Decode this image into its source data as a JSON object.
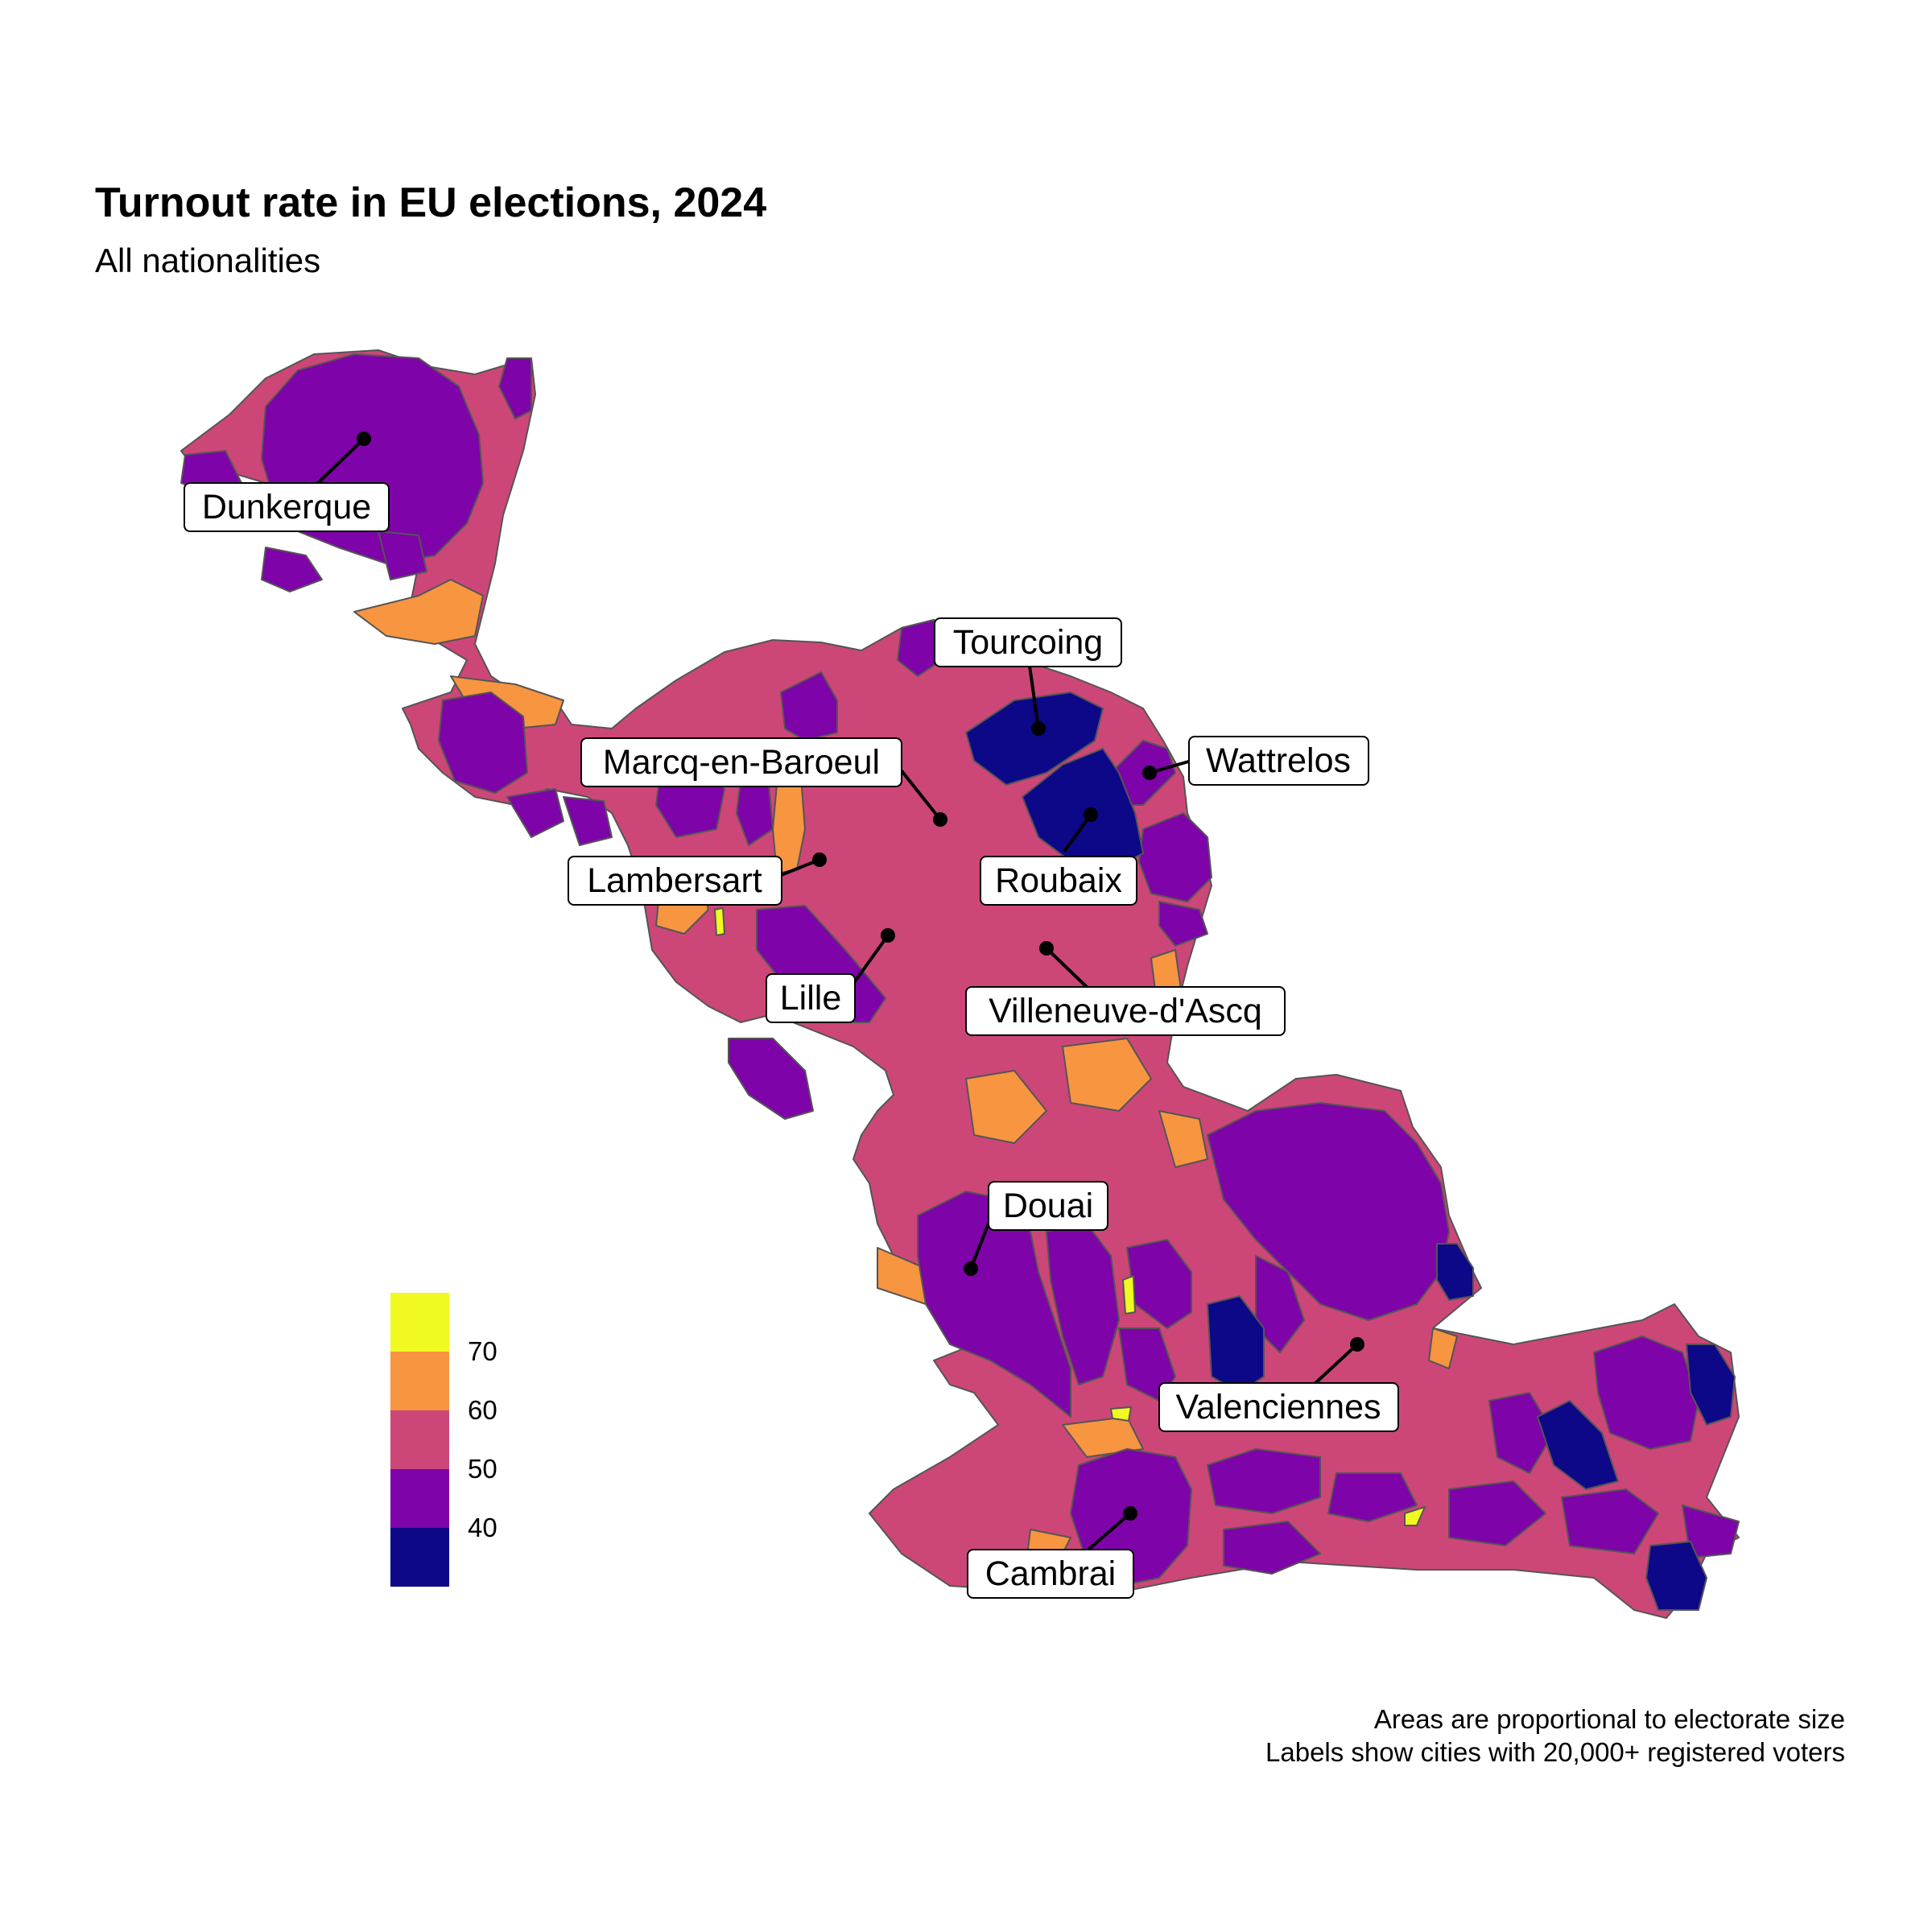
{
  "header": {
    "title": "Turnout rate in EU elections, 2024",
    "subtitle": "All nationalities"
  },
  "caption": {
    "line1": "Areas are proportional to electorate size",
    "line2": "Labels show cities with 20,000+ registered voters"
  },
  "legend": {
    "bins": [
      {
        "color": "#f0f921",
        "label": ""
      },
      {
        "color": "#f89540",
        "label": "70"
      },
      {
        "color": "#cc4778",
        "label": "60"
      },
      {
        "color": "#7e03a8",
        "label": "50"
      },
      {
        "color": "#0d0887",
        "label": "40"
      }
    ]
  },
  "cities": [
    {
      "name": "Dunkerque"
    },
    {
      "name": "Tourcoing"
    },
    {
      "name": "Marcq-en-Baroeul"
    },
    {
      "name": "Wattrelos"
    },
    {
      "name": "Lambersart"
    },
    {
      "name": "Roubaix"
    },
    {
      "name": "Lille"
    },
    {
      "name": "Villeneuve-d'Ascq"
    },
    {
      "name": "Douai"
    },
    {
      "name": "Valenciennes"
    },
    {
      "name": "Cambrai"
    }
  ]
}
